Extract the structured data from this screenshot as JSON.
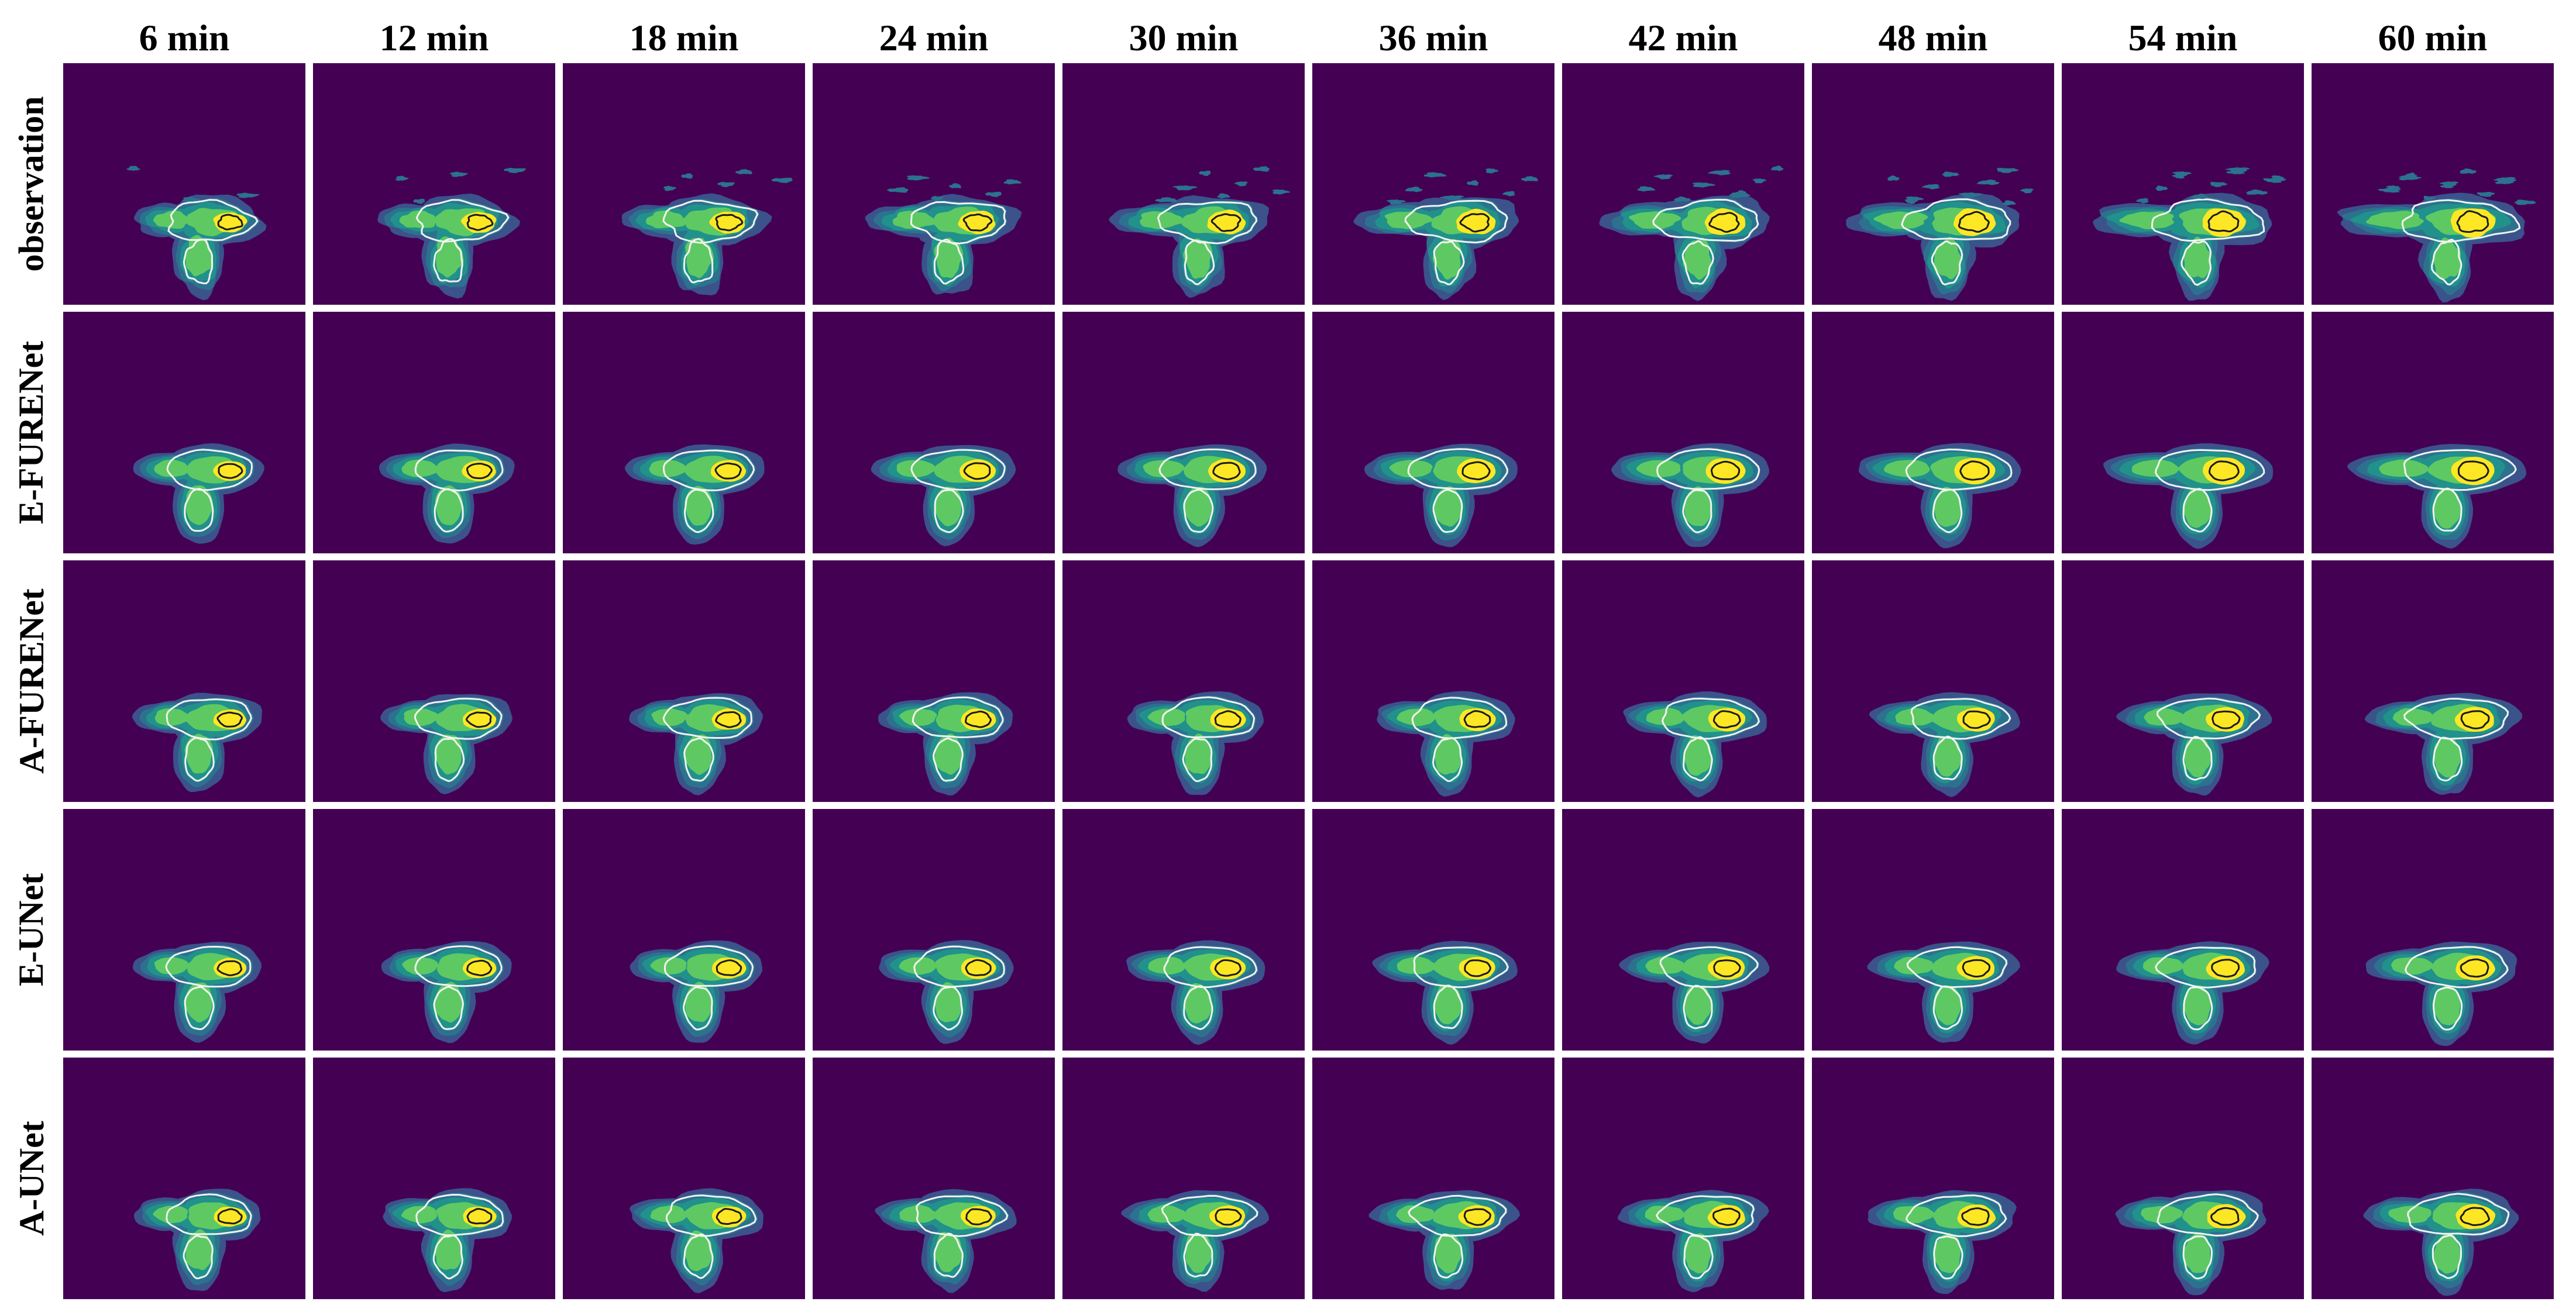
{
  "figure": {
    "columns": [
      "6 min",
      "12 min",
      "18 min",
      "24 min",
      "30 min",
      "36 min",
      "42 min",
      "48 min",
      "54 min",
      "60 min"
    ],
    "rows": [
      "observation",
      "E-FURENet",
      "A-FURENet",
      "E-UNet",
      "A-UNet"
    ]
  },
  "colors": {
    "background": "#440154",
    "level_1": "#3b528b",
    "level_2": "#2c728e",
    "level_3": "#21918c",
    "level_4": "#5ec962",
    "level_5": "#fde725",
    "contour_light": "#f2f2f2",
    "contour_dark": "#1b1b1b"
  }
}
